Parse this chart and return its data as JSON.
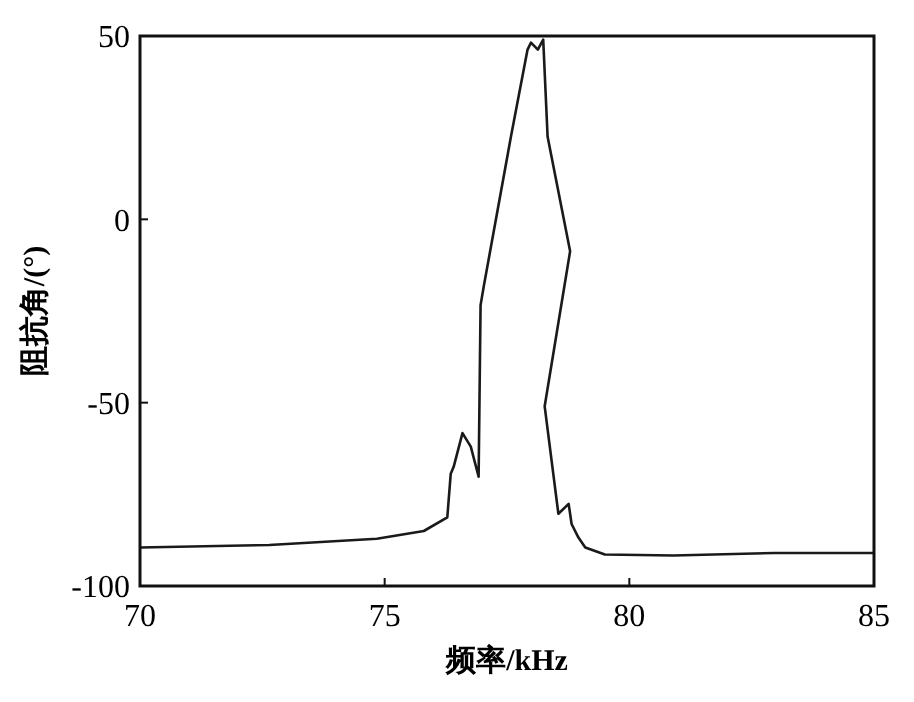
{
  "chart_data": {
    "type": "line",
    "xlabel": "频率/kHz",
    "ylabel": "阻抗角/(°)",
    "xlim": [
      70,
      85
    ],
    "ylim": [
      -100,
      50
    ],
    "xticks": [
      70,
      75,
      80,
      85
    ],
    "yticks": [
      -100,
      -50,
      0,
      50
    ],
    "grid": false,
    "marker": "none",
    "line_style": "solid",
    "series": [
      {
        "color": "#1a1a1a",
        "x": [
          70,
          72.64,
          74.84,
          75.8,
          76.28,
          76.35,
          76.41,
          76.59,
          76.76,
          76.92,
          76.96,
          77.03,
          77.58,
          77.92,
          77.99,
          78.13,
          78.24,
          78.33,
          78.79,
          78.27,
          78.55,
          78.76,
          78.82,
          78.96,
          79.1,
          79.5,
          80.9,
          82.97,
          85
        ],
        "values": [
          -89.5,
          -88.8,
          -87.1,
          -85,
          -81.3,
          -69.4,
          -67.5,
          -58.3,
          -62,
          -70.2,
          -23.4,
          -17.9,
          22.5,
          46.3,
          48.2,
          46.3,
          49,
          22.5,
          -8.7,
          -51,
          -80.3,
          -77.6,
          -83.1,
          -86.8,
          -89.5,
          -91.4,
          -91.7,
          -91,
          -91
        ]
      }
    ]
  }
}
